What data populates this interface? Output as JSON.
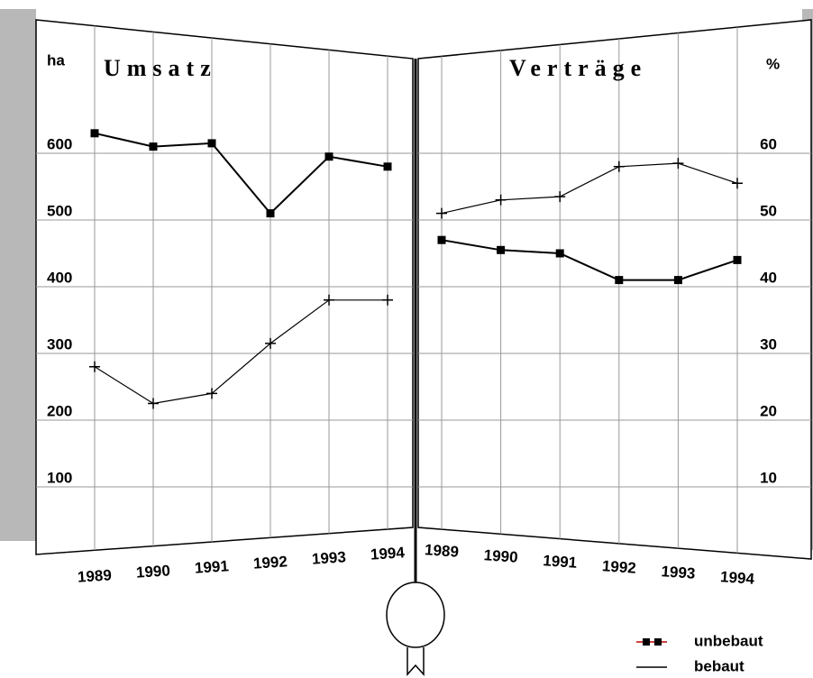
{
  "chart_data": [
    {
      "type": "line",
      "title": "Umsatz",
      "y_label": "ha",
      "y_axis_side": "left",
      "categories": [
        "1989",
        "1990",
        "1991",
        "1992",
        "1993",
        "1994"
      ],
      "series": [
        {
          "color": "#000000",
          "marker": "square",
          "values": [
            630,
            610,
            615,
            510,
            595,
            580
          ]
        },
        {
          "color": "#000000",
          "marker": "plus",
          "values": [
            280,
            225,
            240,
            315,
            380,
            380
          ]
        }
      ],
      "ylim": [
        0,
        700
      ],
      "yticks": [
        100,
        200,
        300,
        400,
        500,
        600
      ],
      "grid": true
    },
    {
      "type": "line",
      "title": "Verträge",
      "y_label": "%",
      "y_axis_side": "right",
      "categories": [
        "1989",
        "1990",
        "1991",
        "1992",
        "1993",
        "1994"
      ],
      "series": [
        {
          "color": "#000000",
          "marker": "square",
          "values": [
            47,
            45.5,
            45,
            41,
            41,
            44
          ]
        },
        {
          "color": "#000000",
          "marker": "plus",
          "values": [
            51,
            53,
            53.5,
            58,
            58.5,
            55.5
          ]
        }
      ],
      "ylim": [
        0,
        70
      ],
      "yticks": [
        10,
        20,
        30,
        40,
        50,
        60
      ],
      "grid": true
    }
  ],
  "legend": [
    {
      "name": "unbebaut",
      "color": "#c00000",
      "marker": "square"
    },
    {
      "name": "bebaut",
      "color": "#000000",
      "marker": "none"
    }
  ]
}
